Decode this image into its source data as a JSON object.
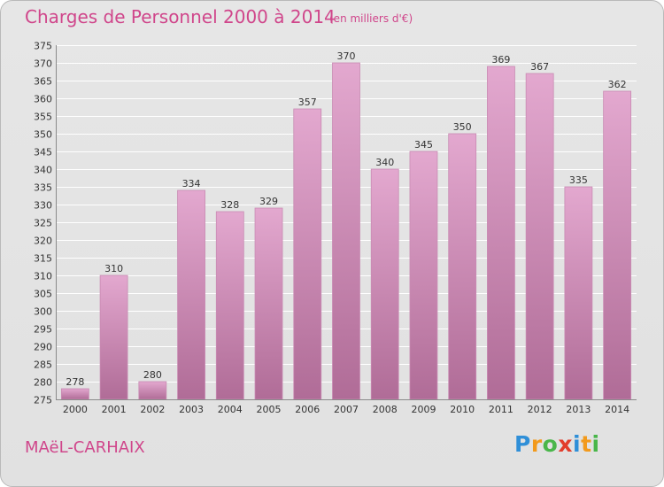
{
  "header": {
    "title": "Charges de Personnel 2000 à 2014",
    "subtitle": "(en milliers d'€)"
  },
  "footer": {
    "commune": "MAëL-CARHAIX",
    "brand_letters": [
      {
        "char": "P",
        "color": "#2f8fd8"
      },
      {
        "char": "r",
        "color": "#f29a1c"
      },
      {
        "char": "o",
        "color": "#49b64a"
      },
      {
        "char": "x",
        "color": "#e23d2c"
      },
      {
        "char": "i",
        "color": "#2f8fd8"
      },
      {
        "char": "t",
        "color": "#f29a1c"
      },
      {
        "char": "i",
        "color": "#49b64a"
      }
    ]
  },
  "colors": {
    "accent": "#d0468b",
    "bar_light": "#e3a8cf",
    "bar_dark": "#b06c97",
    "grid": "#ffffff",
    "background": "#e3e3e3"
  },
  "chart_data": {
    "type": "bar",
    "title": "Charges de Personnel 2000 à 2014",
    "subtitle": "(en milliers d'€)",
    "xlabel": "",
    "ylabel": "",
    "categories": [
      "2000",
      "2001",
      "2002",
      "2003",
      "2004",
      "2005",
      "2006",
      "2007",
      "2008",
      "2009",
      "2010",
      "2011",
      "2012",
      "2013",
      "2014"
    ],
    "values": [
      278,
      310,
      280,
      334,
      328,
      329,
      357,
      370,
      340,
      345,
      350,
      369,
      367,
      335,
      362
    ],
    "ylim": [
      275,
      375
    ],
    "yticks": [
      275,
      280,
      285,
      290,
      295,
      300,
      305,
      310,
      315,
      320,
      325,
      330,
      335,
      340,
      345,
      350,
      355,
      360,
      365,
      370,
      375
    ],
    "grid": true,
    "legend": "none"
  }
}
